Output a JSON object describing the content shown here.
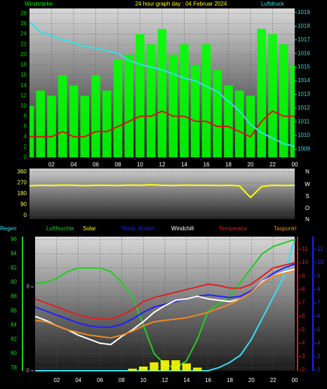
{
  "chart_data": [
    {
      "type": "combo",
      "title": "24 hour graph day : 04 Februar 2024",
      "x": [
        0,
        1,
        2,
        3,
        4,
        5,
        6,
        7,
        8,
        9,
        10,
        11,
        12,
        13,
        14,
        15,
        16,
        17,
        18,
        19,
        20,
        21,
        22,
        23,
        24
      ],
      "xlim": [
        0,
        24
      ],
      "xticks": [
        {
          "value": 2,
          "label": "02"
        },
        {
          "value": 4,
          "label": "04"
        },
        {
          "value": 6,
          "label": "06"
        },
        {
          "value": 8,
          "label": "08"
        },
        10,
        12,
        14,
        16,
        18,
        20,
        22,
        {
          "value": 24,
          "label": "00"
        }
      ],
      "ylim": [
        0,
        29
      ],
      "yticks": [
        0,
        2,
        4,
        6,
        8,
        10,
        12,
        14,
        16,
        18,
        20,
        22,
        24,
        26,
        28
      ],
      "y2lim": [
        1008.4,
        1019.3
      ],
      "y2ticks": [
        1009,
        1010,
        1011,
        1012,
        1013,
        1014,
        1015,
        1016,
        1017,
        1018,
        1019
      ],
      "grid": true,
      "series": [
        {
          "name": "Windstärke",
          "color": "#00ff00",
          "kind": "bar",
          "values": [
            10,
            13,
            12,
            16,
            14,
            12,
            16,
            13,
            19,
            20,
            24,
            22,
            25,
            20,
            22,
            18,
            22,
            17,
            14,
            13,
            12,
            25,
            24,
            22,
            18
          ]
        },
        {
          "color": "#dd1010",
          "kind": "line",
          "values": [
            4,
            4,
            4,
            5,
            4,
            4,
            5,
            5,
            6,
            7,
            8,
            8,
            9,
            8,
            8,
            7,
            7,
            6,
            6,
            5,
            4,
            7,
            9,
            8,
            8
          ]
        },
        {
          "name": "Luftdruck",
          "color": "#33e0e8",
          "kind": "line",
          "axis": "y2",
          "values": [
            1018.3,
            1017.6,
            1017.3,
            1017,
            1016.8,
            1016.5,
            1016.4,
            1016.2,
            1016,
            1015.5,
            1015.2,
            1015,
            1014.8,
            1014.5,
            1014.2,
            1014,
            1013.6,
            1013.2,
            1012.5,
            1011.8,
            1010.8,
            1010.2,
            1009.8,
            1009.4,
            1009.2
          ]
        }
      ]
    },
    {
      "type": "combo",
      "x": [
        0,
        1,
        2,
        3,
        4,
        5,
        6,
        7,
        8,
        9,
        10,
        11,
        12,
        13,
        14,
        15,
        16,
        17,
        18,
        19,
        20,
        21,
        22,
        23,
        24
      ],
      "xlim": [
        0,
        24
      ],
      "ylim": [
        0,
        360
      ],
      "yticks": [
        0,
        90,
        180,
        270,
        360
      ],
      "grid": true,
      "direction_labels": [
        "N",
        "W",
        "S",
        "O",
        "N"
      ],
      "series": [
        {
          "color": "#ffff00",
          "kind": "line",
          "values": [
            245,
            250,
            248,
            252,
            250,
            247,
            250,
            250,
            248,
            252,
            250,
            255,
            250,
            248,
            252,
            250,
            250,
            248,
            250,
            245,
            150,
            240,
            250,
            248,
            250
          ]
        }
      ]
    },
    {
      "type": "combo",
      "x": [
        0,
        1,
        2,
        3,
        4,
        5,
        6,
        7,
        8,
        9,
        10,
        11,
        12,
        13,
        14,
        15,
        16,
        17,
        18,
        19,
        20,
        21,
        22,
        23,
        24
      ],
      "xlim": [
        0,
        24
      ],
      "xticks": [
        {
          "value": 2,
          "label": "02"
        },
        {
          "value": 4,
          "label": "04"
        },
        {
          "value": 6,
          "label": "06"
        },
        {
          "value": 8,
          "label": "08"
        },
        10,
        12,
        14,
        16,
        18,
        20,
        22,
        {
          "value": 24,
          "label": "00"
        }
      ],
      "ylim": [
        77.6,
        96.4
      ],
      "yticks": [
        78,
        80,
        82,
        84,
        86,
        88,
        90,
        92,
        94,
        96
      ],
      "y2lim": [
        1.95,
        11.94
      ],
      "y2ticks": [
        2,
        3,
        4,
        5,
        6,
        7,
        8,
        9,
        10,
        11
      ],
      "y3lim": [
        1.95,
        11.94
      ],
      "y3ticks": [
        2,
        3,
        4,
        5,
        6,
        7,
        8,
        9,
        10,
        11
      ],
      "y4lim": [
        0,
        12.8
      ],
      "y4ticks": [
        0,
        8
      ],
      "grid": true,
      "series": [
        {
          "name": "Regen",
          "color": "#33e0f0",
          "kind": "line",
          "axis": "y4",
          "values": [
            0,
            0,
            0,
            0,
            0,
            0,
            0,
            0,
            0,
            0,
            0,
            0,
            0,
            0,
            0,
            0,
            0,
            0.3,
            0.8,
            1.5,
            3,
            5,
            7,
            9,
            12.6
          ]
        },
        {
          "name": "Luftfeuchte",
          "color": "#22cc22",
          "kind": "line",
          "values": [
            89.8,
            90,
            90.5,
            91.5,
            92,
            92,
            92,
            91.5,
            90,
            88,
            84,
            80,
            78.5,
            78,
            79,
            82,
            86,
            87,
            88,
            90,
            92,
            94,
            95,
            95.5,
            96
          ]
        },
        {
          "name": "Solar",
          "color": "#ffff00",
          "kind": "bar",
          "axis": "y4",
          "values": [
            0,
            0,
            0,
            0,
            0,
            0,
            0,
            0,
            0,
            0.2,
            0.4,
            0.8,
            1,
            1,
            0.7,
            0.3,
            0,
            0,
            0,
            0,
            0,
            0,
            0,
            0,
            0
          ]
        },
        {
          "name": "Temp. Boden",
          "color": "#2020ff",
          "kind": "line",
          "axis": "y3",
          "values": [
            6.7,
            6.4,
            6.1,
            5.8,
            5.5,
            5.3,
            5.2,
            5.2,
            5.4,
            5.8,
            6.3,
            6.7,
            6.9,
            7.1,
            7.3,
            7.5,
            7.6,
            7.5,
            7.4,
            7.5,
            7.9,
            8.6,
            9.2,
            9.6,
            9.9
          ]
        },
        {
          "name": "Windchill",
          "color": "#ffffff",
          "kind": "line",
          "axis": "y2",
          "values": [
            6,
            5.7,
            5.3,
            5,
            4.6,
            4.3,
            4,
            3.9,
            4.5,
            5,
            5.6,
            6.3,
            6.8,
            7.2,
            7.3,
            7.5,
            7.3,
            7.2,
            7.1,
            7.3,
            7.8,
            8.6,
            9,
            9.3,
            9.5
          ]
        },
        {
          "name": "Temperatur",
          "color": "#e02020",
          "kind": "line",
          "axis": "y2",
          "values": [
            7.3,
            7,
            6.7,
            6.4,
            6.1,
            5.9,
            5.8,
            5.8,
            6.1,
            6.5,
            7.1,
            7.4,
            7.6,
            7.8,
            8,
            8.2,
            8.4,
            8.3,
            8.1,
            8.1,
            8.4,
            9,
            9.6,
            9.8,
            10
          ]
        },
        {
          "name": "Taupunkt",
          "color": "#ee8820",
          "kind": "line",
          "axis": "y2",
          "values": [
            5.7,
            5.6,
            5.3,
            5,
            4.8,
            4.6,
            4.5,
            4.4,
            4.6,
            4.9,
            5.3,
            5.6,
            5.7,
            5.8,
            5.9,
            6.1,
            6.3,
            6.6,
            6.9,
            7.3,
            7.8,
            8.5,
            9,
            9.2,
            9.4
          ]
        }
      ]
    }
  ]
}
